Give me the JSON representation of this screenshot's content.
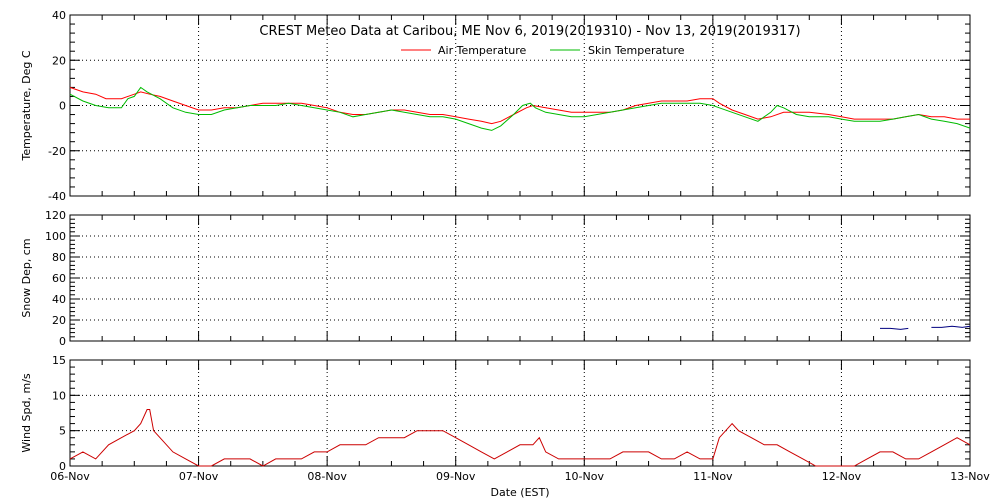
{
  "chart_data": {
    "type": "line",
    "title": "CREST Meteo Data at Caribou, ME   Nov  6, 2019(2019310) - Nov 13, 2019(2019317)",
    "xlabel": "Date (EST)",
    "x_ticks": [
      "06-Nov",
      "07-Nov",
      "08-Nov",
      "09-Nov",
      "10-Nov",
      "11-Nov",
      "12-Nov",
      "13-Nov"
    ],
    "xlim": [
      0,
      7
    ],
    "grid": true,
    "panels": [
      {
        "id": "temperature",
        "ylabel": "Temperature, Deg C",
        "ylim": [
          -40,
          40
        ],
        "y_ticks": [
          40,
          20,
          0,
          -20,
          -40
        ],
        "legend": "top",
        "series": [
          {
            "name": "Air Temperature",
            "color": "#ff0000",
            "points": [
              [
                0.0,
                8
              ],
              [
                0.1,
                6
              ],
              [
                0.2,
                5
              ],
              [
                0.28,
                3
              ],
              [
                0.4,
                3
              ],
              [
                0.5,
                5
              ],
              [
                0.55,
                6
              ],
              [
                0.62,
                5
              ],
              [
                0.7,
                4
              ],
              [
                0.8,
                2
              ],
              [
                0.9,
                0
              ],
              [
                1.0,
                -2
              ],
              [
                1.1,
                -2
              ],
              [
                1.2,
                -1
              ],
              [
                1.3,
                -1
              ],
              [
                1.4,
                0
              ],
              [
                1.5,
                1
              ],
              [
                1.6,
                1
              ],
              [
                1.7,
                1
              ],
              [
                1.8,
                1
              ],
              [
                1.9,
                0
              ],
              [
                2.0,
                -1
              ],
              [
                2.1,
                -3
              ],
              [
                2.2,
                -4
              ],
              [
                2.3,
                -4
              ],
              [
                2.4,
                -3
              ],
              [
                2.5,
                -2
              ],
              [
                2.6,
                -2
              ],
              [
                2.7,
                -3
              ],
              [
                2.8,
                -4
              ],
              [
                2.9,
                -4
              ],
              [
                3.0,
                -5
              ],
              [
                3.1,
                -6
              ],
              [
                3.2,
                -7
              ],
              [
                3.28,
                -8
              ],
              [
                3.35,
                -7
              ],
              [
                3.45,
                -4
              ],
              [
                3.55,
                -1
              ],
              [
                3.6,
                0
              ],
              [
                3.7,
                -1
              ],
              [
                3.8,
                -2
              ],
              [
                3.9,
                -3
              ],
              [
                4.0,
                -3
              ],
              [
                4.1,
                -3
              ],
              [
                4.2,
                -3
              ],
              [
                4.3,
                -2
              ],
              [
                4.4,
                0
              ],
              [
                4.5,
                1
              ],
              [
                4.6,
                2
              ],
              [
                4.7,
                2
              ],
              [
                4.8,
                2
              ],
              [
                4.9,
                3
              ],
              [
                5.0,
                3
              ],
              [
                5.05,
                1
              ],
              [
                5.15,
                -2
              ],
              [
                5.25,
                -4
              ],
              [
                5.35,
                -6
              ],
              [
                5.45,
                -5
              ],
              [
                5.55,
                -3
              ],
              [
                5.65,
                -3
              ],
              [
                5.75,
                -3
              ],
              [
                5.9,
                -4
              ],
              [
                6.0,
                -5
              ],
              [
                6.1,
                -6
              ],
              [
                6.2,
                -6
              ],
              [
                6.3,
                -6
              ],
              [
                6.4,
                -6
              ],
              [
                6.5,
                -5
              ],
              [
                6.6,
                -4
              ],
              [
                6.7,
                -5
              ],
              [
                6.8,
                -5
              ],
              [
                6.9,
                -6
              ],
              [
                7.0,
                -6
              ]
            ]
          },
          {
            "name": "Skin Temperature",
            "color": "#00bb00",
            "points": [
              [
                0.0,
                5
              ],
              [
                0.1,
                2
              ],
              [
                0.2,
                0
              ],
              [
                0.3,
                -1
              ],
              [
                0.4,
                -1
              ],
              [
                0.45,
                3
              ],
              [
                0.5,
                4
              ],
              [
                0.55,
                8
              ],
              [
                0.6,
                6
              ],
              [
                0.7,
                3
              ],
              [
                0.8,
                -1
              ],
              [
                0.9,
                -3
              ],
              [
                1.0,
                -4
              ],
              [
                1.1,
                -4
              ],
              [
                1.2,
                -2
              ],
              [
                1.3,
                -1
              ],
              [
                1.4,
                0
              ],
              [
                1.5,
                0
              ],
              [
                1.6,
                0
              ],
              [
                1.7,
                1
              ],
              [
                1.8,
                0
              ],
              [
                1.9,
                -1
              ],
              [
                2.0,
                -2
              ],
              [
                2.1,
                -3
              ],
              [
                2.2,
                -5
              ],
              [
                2.3,
                -4
              ],
              [
                2.4,
                -3
              ],
              [
                2.5,
                -2
              ],
              [
                2.6,
                -3
              ],
              [
                2.7,
                -4
              ],
              [
                2.8,
                -5
              ],
              [
                2.9,
                -5
              ],
              [
                3.0,
                -6
              ],
              [
                3.1,
                -8
              ],
              [
                3.2,
                -10
              ],
              [
                3.28,
                -11
              ],
              [
                3.35,
                -9
              ],
              [
                3.45,
                -4
              ],
              [
                3.52,
                0
              ],
              [
                3.58,
                1
              ],
              [
                3.62,
                -1
              ],
              [
                3.7,
                -3
              ],
              [
                3.8,
                -4
              ],
              [
                3.9,
                -5
              ],
              [
                4.0,
                -5
              ],
              [
                4.1,
                -4
              ],
              [
                4.2,
                -3
              ],
              [
                4.3,
                -2
              ],
              [
                4.4,
                -1
              ],
              [
                4.5,
                0
              ],
              [
                4.6,
                1
              ],
              [
                4.7,
                1
              ],
              [
                4.8,
                1
              ],
              [
                4.9,
                1
              ],
              [
                5.0,
                0
              ],
              [
                5.05,
                -1
              ],
              [
                5.15,
                -3
              ],
              [
                5.25,
                -5
              ],
              [
                5.35,
                -7
              ],
              [
                5.45,
                -3
              ],
              [
                5.5,
                0
              ],
              [
                5.55,
                -1
              ],
              [
                5.65,
                -4
              ],
              [
                5.75,
                -5
              ],
              [
                5.9,
                -5
              ],
              [
                6.0,
                -6
              ],
              [
                6.1,
                -7
              ],
              [
                6.2,
                -7
              ],
              [
                6.3,
                -7
              ],
              [
                6.4,
                -6
              ],
              [
                6.5,
                -5
              ],
              [
                6.6,
                -4
              ],
              [
                6.7,
                -6
              ],
              [
                6.8,
                -7
              ],
              [
                6.9,
                -8
              ],
              [
                7.0,
                -10
              ]
            ]
          }
        ]
      },
      {
        "id": "snow_depth",
        "ylabel": "Snow Dep, cm",
        "ylim": [
          0,
          120
        ],
        "y_ticks": [
          120,
          100,
          80,
          60,
          40,
          20,
          0
        ],
        "series": [
          {
            "color": "#000080",
            "segments": [
              [
                [
                  6.3,
                  12
                ],
                [
                  6.38,
                  12
                ],
                [
                  6.46,
                  11
                ],
                [
                  6.52,
                  12
                ]
              ],
              [
                [
                  6.7,
                  13
                ],
                [
                  6.78,
                  13
                ],
                [
                  6.86,
                  14
                ],
                [
                  6.94,
                  13
                ],
                [
                  7.0,
                  14
                ]
              ]
            ]
          }
        ]
      },
      {
        "id": "wind_speed",
        "ylabel": "Wind Spd, m/s",
        "ylim": [
          0,
          15
        ],
        "y_ticks": [
          15,
          10,
          5,
          0
        ],
        "series": [
          {
            "color": "#cc0000",
            "points": [
              [
                0.0,
                1
              ],
              [
                0.1,
                2
              ],
              [
                0.2,
                1
              ],
              [
                0.3,
                3
              ],
              [
                0.4,
                4
              ],
              [
                0.5,
                5
              ],
              [
                0.55,
                6
              ],
              [
                0.6,
                8
              ],
              [
                0.62,
                8
              ],
              [
                0.65,
                5
              ],
              [
                0.7,
                4
              ],
              [
                0.8,
                2
              ],
              [
                0.9,
                1
              ],
              [
                1.0,
                0
              ],
              [
                1.1,
                0
              ],
              [
                1.2,
                1
              ],
              [
                1.3,
                1
              ],
              [
                1.4,
                1
              ],
              [
                1.5,
                0
              ],
              [
                1.6,
                1
              ],
              [
                1.7,
                1
              ],
              [
                1.8,
                1
              ],
              [
                1.9,
                2
              ],
              [
                2.0,
                2
              ],
              [
                2.1,
                3
              ],
              [
                2.2,
                3
              ],
              [
                2.3,
                3
              ],
              [
                2.4,
                4
              ],
              [
                2.5,
                4
              ],
              [
                2.6,
                4
              ],
              [
                2.7,
                5
              ],
              [
                2.8,
                5
              ],
              [
                2.9,
                5
              ],
              [
                3.0,
                4
              ],
              [
                3.1,
                3
              ],
              [
                3.2,
                2
              ],
              [
                3.3,
                1
              ],
              [
                3.4,
                2
              ],
              [
                3.5,
                3
              ],
              [
                3.6,
                3
              ],
              [
                3.65,
                4
              ],
              [
                3.7,
                2
              ],
              [
                3.8,
                1
              ],
              [
                3.9,
                1
              ],
              [
                4.0,
                1
              ],
              [
                4.1,
                1
              ],
              [
                4.2,
                1
              ],
              [
                4.3,
                2
              ],
              [
                4.4,
                2
              ],
              [
                4.5,
                2
              ],
              [
                4.6,
                1
              ],
              [
                4.7,
                1
              ],
              [
                4.8,
                2
              ],
              [
                4.9,
                1
              ],
              [
                5.0,
                1
              ],
              [
                5.05,
                4
              ],
              [
                5.1,
                5
              ],
              [
                5.15,
                6
              ],
              [
                5.2,
                5
              ],
              [
                5.3,
                4
              ],
              [
                5.4,
                3
              ],
              [
                5.5,
                3
              ],
              [
                5.6,
                2
              ],
              [
                5.7,
                1
              ],
              [
                5.8,
                0
              ],
              [
                5.9,
                0
              ],
              [
                6.0,
                0
              ],
              [
                6.1,
                0
              ],
              [
                6.2,
                1
              ],
              [
                6.3,
                2
              ],
              [
                6.4,
                2
              ],
              [
                6.5,
                1
              ],
              [
                6.6,
                1
              ],
              [
                6.7,
                2
              ],
              [
                6.8,
                3
              ],
              [
                6.9,
                4
              ],
              [
                7.0,
                3
              ]
            ]
          }
        ]
      }
    ]
  }
}
